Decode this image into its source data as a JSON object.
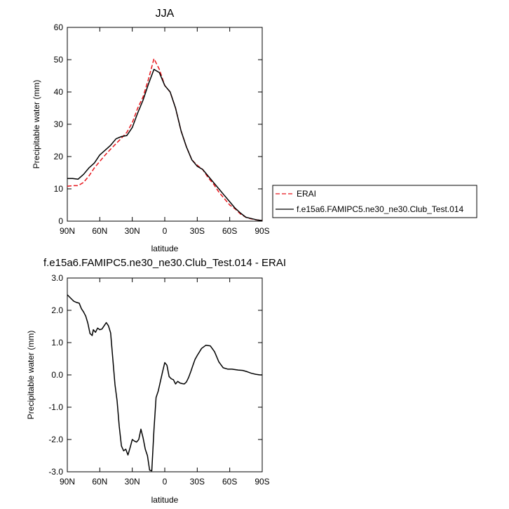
{
  "chart_data": [
    {
      "type": "line",
      "title": "JJA",
      "xlabel": "latitude",
      "ylabel": "Precipitable water (mm)",
      "x_unit": "latitude (degrees, N positive)",
      "xlim": [
        90,
        -90
      ],
      "ylim": [
        0,
        60
      ],
      "x_ticks": [
        90,
        60,
        30,
        0,
        -30,
        -60,
        -90
      ],
      "x_tick_labels": [
        "90N",
        "60N",
        "30N",
        "0",
        "30S",
        "60S",
        "90S"
      ],
      "y_ticks": [
        0,
        10,
        20,
        30,
        40,
        50,
        60
      ],
      "y_tick_labels": [
        "0",
        "10",
        "20",
        "30",
        "40",
        "50",
        "60"
      ],
      "grid": false,
      "legend": "right",
      "series": [
        {
          "name": "ERAI",
          "color": "#e8151b",
          "dash": "dashed",
          "x": [
            90,
            85,
            80,
            75,
            70,
            65,
            60,
            55,
            50,
            45,
            40,
            35,
            30,
            25,
            20,
            15,
            10,
            5,
            0,
            -5,
            -10,
            -15,
            -20,
            -25,
            -30,
            -35,
            -40,
            -45,
            -50,
            -55,
            -60,
            -65,
            -70,
            -75,
            -80,
            -85,
            -90
          ],
          "y": [
            10.8,
            11,
            11,
            12,
            14,
            16.5,
            18.5,
            20.5,
            22.3,
            24,
            25.7,
            27.5,
            30.5,
            35,
            38.5,
            44,
            50.3,
            47,
            42,
            40,
            35,
            28,
            23,
            19,
            17.3,
            16,
            13.5,
            11.5,
            9,
            7,
            5,
            3.8,
            2.2,
            1.2,
            0.7,
            0.4,
            0.2
          ]
        },
        {
          "name": "f.e15a6.FAMIPC5.ne30_ne30.Club_Test.014",
          "color": "#000000",
          "dash": "solid",
          "x": [
            90,
            85,
            80,
            75,
            70,
            65,
            60,
            55,
            50,
            45,
            40,
            35,
            30,
            25,
            20,
            15,
            10,
            5,
            0,
            -5,
            -10,
            -15,
            -20,
            -25,
            -30,
            -35,
            -40,
            -45,
            -50,
            -55,
            -60,
            -65,
            -70,
            -75,
            -80,
            -85,
            -90
          ],
          "y": [
            13.2,
            13.2,
            13,
            14.5,
            16.5,
            18,
            20.5,
            22,
            23.5,
            25.5,
            26.2,
            26.5,
            29,
            33.5,
            37.5,
            42.5,
            47,
            46,
            42,
            40,
            35,
            28,
            23,
            19,
            17,
            16,
            14,
            12,
            10,
            8,
            6,
            4,
            2.5,
            1.2,
            0.8,
            0.4,
            0.2
          ]
        }
      ]
    },
    {
      "type": "line",
      "title": "f.e15a6.FAMIPC5.ne30_ne30.Club_Test.014 - ERAI",
      "xlabel": "latitude",
      "ylabel": "Precipitable water (mm)",
      "x_unit": "latitude (degrees, N positive)",
      "xlim": [
        90,
        -90
      ],
      "ylim": [
        -3,
        3
      ],
      "x_ticks": [
        90,
        60,
        30,
        0,
        -30,
        -60,
        -90
      ],
      "x_tick_labels": [
        "90N",
        "60N",
        "30N",
        "0",
        "30S",
        "60S",
        "90S"
      ],
      "y_ticks": [
        -3,
        -2,
        -1,
        0,
        1,
        2,
        3
      ],
      "y_tick_labels": [
        "-3.0",
        "-2.0",
        "-1.0",
        "0.0",
        "1.0",
        "2.0",
        "3.0"
      ],
      "grid": false,
      "series": [
        {
          "color": "#000000",
          "dash": "solid",
          "x": [
            90,
            87,
            84,
            82,
            79,
            77,
            75,
            73,
            71,
            69,
            67,
            66,
            64,
            62,
            60,
            58,
            56,
            54,
            52,
            50,
            48,
            46,
            44,
            42,
            40,
            38,
            36,
            34,
            32,
            30,
            28,
            26,
            24,
            22,
            20,
            18,
            16,
            14,
            12,
            10,
            9,
            8,
            6,
            4,
            2,
            0,
            -2,
            -4,
            -6,
            -8,
            -10,
            -12,
            -14,
            -16,
            -18,
            -20,
            -22,
            -24,
            -26,
            -28,
            -30,
            -34,
            -38,
            -42,
            -46,
            -50,
            -54,
            -58,
            -60,
            -62,
            -64,
            -68,
            -72,
            -76,
            -80,
            -84,
            -88,
            -90
          ],
          "y": [
            2.48,
            2.38,
            2.28,
            2.25,
            2.22,
            2.05,
            1.95,
            1.82,
            1.6,
            1.28,
            1.22,
            1.4,
            1.32,
            1.45,
            1.4,
            1.42,
            1.52,
            1.62,
            1.52,
            1.3,
            0.5,
            -0.3,
            -0.8,
            -1.6,
            -2.2,
            -2.35,
            -2.3,
            -2.48,
            -2.25,
            -2.0,
            -2.05,
            -2.08,
            -2.0,
            -1.68,
            -1.95,
            -2.3,
            -2.5,
            -2.95,
            -2.97,
            -1.7,
            -1.2,
            -0.7,
            -0.5,
            -0.2,
            0.1,
            0.38,
            0.3,
            -0.05,
            -0.12,
            -0.15,
            -0.28,
            -0.2,
            -0.25,
            -0.27,
            -0.28,
            -0.22,
            -0.08,
            0.1,
            0.3,
            0.48,
            0.6,
            0.82,
            0.92,
            0.9,
            0.72,
            0.4,
            0.22,
            0.18,
            0.18,
            0.18,
            0.17,
            0.15,
            0.14,
            0.1,
            0.05,
            0.02,
            0.0,
            0.0
          ]
        }
      ]
    }
  ]
}
